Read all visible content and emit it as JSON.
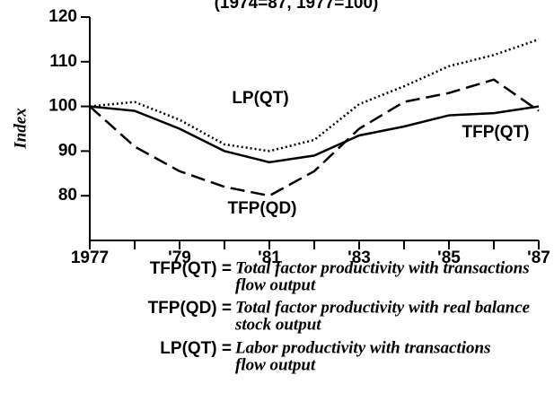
{
  "chart_data": {
    "type": "line",
    "subtitle": "(1974=87, 1977=100)",
    "y_label": "Index",
    "x": [
      1977,
      1978,
      1979,
      1980,
      1981,
      1982,
      1983,
      1984,
      1985,
      1986,
      1987
    ],
    "series": [
      {
        "name": "TFP(QT)",
        "color": "#000000",
        "style": "solid",
        "values": [
          100,
          99,
          95,
          90,
          87.5,
          89,
          93.5,
          95.5,
          98,
          98.5,
          100
        ]
      },
      {
        "name": "TFP(QD)",
        "color": "#000000",
        "style": "dashed",
        "values": [
          100,
          91,
          85.5,
          82,
          80,
          85.5,
          95,
          101,
          103,
          106,
          99
        ]
      },
      {
        "name": "LP(QT)",
        "color": "#000000",
        "style": "dotted",
        "values": [
          100,
          101,
          97,
          91.5,
          90,
          92.5,
          100.5,
          104.5,
          109,
          111.5,
          115
        ]
      }
    ],
    "xlim": [
      1977,
      1987
    ],
    "xticks": [
      {
        "value": 1977,
        "label": "1977"
      },
      {
        "value": 1979,
        "label": "'79"
      },
      {
        "value": 1981,
        "label": "'81"
      },
      {
        "value": 1983,
        "label": "'83"
      },
      {
        "value": 1985,
        "label": "'85"
      },
      {
        "value": 1987,
        "label": "'87"
      }
    ],
    "ylim": [
      70,
      120
    ],
    "yticks": [
      80,
      90,
      100,
      110,
      120
    ],
    "notes": [
      {
        "key": "TFP(QT) =",
        "lines": [
          "Total factor productivity with transactions",
          "flow output"
        ]
      },
      {
        "key": "TFP(QD) =",
        "lines": [
          "Total factor productivity with real balance",
          "stock output"
        ]
      },
      {
        "key": "LP(QT) =",
        "lines": [
          "Labor productivity with transactions",
          "flow output"
        ]
      }
    ]
  }
}
